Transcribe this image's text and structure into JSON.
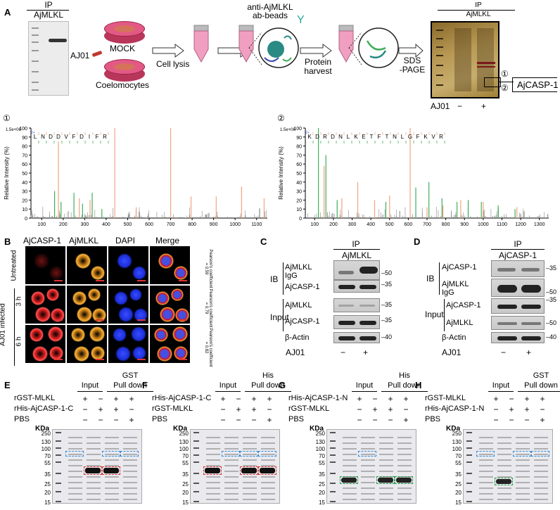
{
  "panels": {
    "a": "A",
    "b": "B",
    "c": "C",
    "d": "D",
    "e": "E",
    "f": "F",
    "g": "G",
    "h": "H"
  },
  "panel_a": {
    "ip_label": "IP",
    "ip_target": "AjMLKL",
    "mock": "MOCK",
    "aj01": "AJ01",
    "coelomocytes": "Coelomocytes",
    "cell_lysis": "Cell lysis",
    "beads_line1": "anti-AjMLKL",
    "beads_line2": "ab-beads",
    "protein_line1": "Protein",
    "protein_line2": "harvest",
    "sds_line1": "SDS",
    "sds_line2": "-PAGE",
    "gel_ip": "IP",
    "gel_target": "AjMLKL",
    "band1": "①",
    "band2": "②",
    "result": "AjCASP-1",
    "gel_aj01": "AJ01",
    "minus": "−",
    "plus": "+"
  },
  "spectra": [
    {
      "marker": "①",
      "ymax": "1.5e+06",
      "sequence": [
        "L",
        "N",
        "D",
        "D",
        "V",
        "F",
        "D",
        "I",
        "F",
        "R"
      ],
      "ylabel": "Relative Intensity (%)",
      "xlabel": "m/z",
      "yticks": [
        "0",
        "10",
        "20",
        "30",
        "40",
        "50",
        "60",
        "70",
        "80",
        "90",
        "100"
      ],
      "xticks": [
        "100",
        "200",
        "300",
        "400",
        "500",
        "600",
        "700",
        "800",
        "900",
        "1000",
        "1100"
      ],
      "xmin": 50,
      "xmax": 1150,
      "orange_peaks": [
        [
          178,
          85
        ],
        [
          275,
          22
        ],
        [
          325,
          20
        ],
        [
          440,
          100
        ],
        [
          540,
          12
        ],
        [
          700,
          100
        ],
        [
          795,
          24
        ],
        [
          912,
          24
        ],
        [
          1030,
          35
        ],
        [
          1135,
          22
        ]
      ],
      "green_peaks": [
        [
          160,
          30
        ],
        [
          190,
          18
        ],
        [
          250,
          28
        ],
        [
          290,
          16
        ],
        [
          335,
          28
        ],
        [
          380,
          10
        ]
      ]
    },
    {
      "marker": "②",
      "ymax": "1.5e+06",
      "sequence": [
        "K",
        "D",
        "R",
        "D",
        "N",
        "L",
        "K",
        "E",
        "T",
        "F",
        "T",
        "N",
        "L",
        "G",
        "F",
        "K",
        "V",
        "R"
      ],
      "ylabel": "Relative Intensity (%)",
      "xlabel": "m/z",
      "yticks": [
        "0",
        "10",
        "20",
        "30",
        "40",
        "50",
        "60",
        "70",
        "80",
        "90",
        "100"
      ],
      "xticks": [
        "100",
        "200",
        "300",
        "400",
        "500",
        "600",
        "700",
        "800",
        "900",
        "1000",
        "1100",
        "1200",
        "1300"
      ],
      "xmin": 50,
      "xmax": 1350,
      "orange_peaks": [
        [
          150,
          58
        ],
        [
          245,
          22
        ],
        [
          330,
          40
        ],
        [
          420,
          20
        ],
        [
          500,
          25
        ],
        [
          610,
          100
        ],
        [
          700,
          12
        ],
        [
          785,
          14
        ],
        [
          880,
          20
        ],
        [
          1000,
          18
        ],
        [
          1180,
          12
        ]
      ],
      "green_peaks": [
        [
          120,
          100
        ],
        [
          160,
          70
        ],
        [
          220,
          20
        ],
        [
          480,
          18
        ],
        [
          640,
          34
        ],
        [
          710,
          40
        ],
        [
          780,
          22
        ],
        [
          860,
          18
        ],
        [
          920,
          20
        ],
        [
          990,
          18
        ],
        [
          1080,
          14
        ],
        [
          1170,
          10
        ]
      ]
    }
  ],
  "panel_b": {
    "columns": [
      "AjCASP-1",
      "AjMLKL",
      "DAPI",
      "Merge"
    ],
    "rows": [
      {
        "label": "Untreated",
        "pearson": "Pearson's coefficient = 0.59"
      },
      {
        "label": "3 h",
        "pearson": "Pearson's coefficient = 0.79"
      },
      {
        "label": "6 h",
        "pearson": "Pearson's coefficient = 0.82"
      }
    ],
    "infected": "AJ01 infected"
  },
  "panel_c": {
    "ip": "IP",
    "target": "AjMLKL",
    "ib": "IB",
    "input": "Input",
    "rows": [
      "AjMLKL",
      "IgG",
      "AjCASP-1",
      "AjMLKL",
      "AjCASP-1",
      "β-Actin"
    ],
    "mw": [
      "50",
      "35",
      "35",
      "35",
      "40"
    ],
    "aj01": "AJ01",
    "minus": "−",
    "plus": "+"
  },
  "panel_d": {
    "ip": "IP",
    "target": "AjCASP-1",
    "ib": "IB",
    "input": "Input",
    "rows": [
      "AjCASP-1",
      "AjMLKL",
      "IgG",
      "AjCASP-1",
      "AjMLKL",
      "β-Actin"
    ],
    "mw": [
      "35",
      "50",
      "35",
      "50",
      "40"
    ],
    "aj01": "AJ01",
    "minus": "−",
    "plus": "+"
  },
  "pulldowns": [
    {
      "id": "e",
      "input": "Input",
      "tag": "GST",
      "pull": "Pull down",
      "rows": [
        {
          "label": "rGST-MLKL",
          "signs": [
            "+",
            "−",
            "+",
            "+"
          ]
        },
        {
          "label": "rHis-AjCASP-1-C",
          "signs": [
            "−",
            "+",
            "+",
            "−"
          ]
        },
        {
          "label": "PBS",
          "signs": [
            "−",
            "−",
            "−",
            "+"
          ]
        }
      ]
    },
    {
      "id": "f",
      "input": "Input",
      "tag": "His",
      "pull": "Pull down",
      "rows": [
        {
          "label": "rHis-AjCASP-1-C",
          "signs": [
            "+",
            "−",
            "+",
            "+"
          ]
        },
        {
          "label": "rGST-MLKL",
          "signs": [
            "−",
            "+",
            "+",
            "−"
          ]
        },
        {
          "label": "PBS",
          "signs": [
            "−",
            "−",
            "−",
            "+"
          ]
        }
      ]
    },
    {
      "id": "g",
      "input": "Input",
      "tag": "His",
      "pull": "Pull down",
      "rows": [
        {
          "label": "rHis-AjCASP-1-N",
          "signs": [
            "+",
            "−",
            "+",
            "+"
          ]
        },
        {
          "label": "rGST-MLKL",
          "signs": [
            "−",
            "+",
            "+",
            "−"
          ]
        },
        {
          "label": "PBS",
          "signs": [
            "−",
            "−",
            "−",
            "+"
          ]
        }
      ]
    },
    {
      "id": "h",
      "input": "Input",
      "tag": "GST",
      "pull": "Pull down",
      "rows": [
        {
          "label": "rGST-MLKL",
          "signs": [
            "+",
            "−",
            "+",
            "+"
          ]
        },
        {
          "label": "rHis-AjCASP-1-N",
          "signs": [
            "−",
            "+",
            "+",
            "−"
          ]
        },
        {
          "label": "PBS",
          "signs": [
            "−",
            "−",
            "−",
            "+"
          ]
        }
      ]
    }
  ],
  "kda": {
    "title": "KDa",
    "ticks": [
      "250",
      "130",
      "100",
      "70",
      "55",
      "35",
      "25",
      "20",
      "15"
    ]
  },
  "colors": {
    "orange": "#f3a37e",
    "green": "#3fae5a",
    "grey": "#555555",
    "blue_box": "#3a8fd8",
    "red_box": "#d33333",
    "green_box": "#2aa24a"
  }
}
